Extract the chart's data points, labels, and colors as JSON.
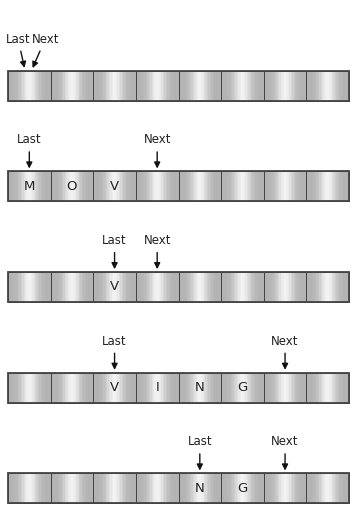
{
  "num_cells": 8,
  "rows": [
    {
      "contents": [
        "",
        "",
        "",
        "",
        "",
        "",
        "",
        ""
      ],
      "last_cell": 0,
      "next_cell": 0,
      "last_next_same": true
    },
    {
      "contents": [
        "M",
        "O",
        "V",
        "",
        "",
        "",
        "",
        ""
      ],
      "last_cell": 0,
      "next_cell": 3,
      "last_next_same": false
    },
    {
      "contents": [
        "",
        "",
        "V",
        "",
        "",
        "",
        "",
        ""
      ],
      "last_cell": 2,
      "next_cell": 3,
      "last_next_same": false
    },
    {
      "contents": [
        "",
        "",
        "V",
        "I",
        "N",
        "G",
        "",
        ""
      ],
      "last_cell": 2,
      "next_cell": 6,
      "last_next_same": false
    },
    {
      "contents": [
        "",
        "",
        "",
        "",
        "N",
        "G",
        "",
        ""
      ],
      "last_cell": 4,
      "next_cell": 6,
      "last_next_same": false
    }
  ],
  "num_rows": 5,
  "fig_width": 3.57,
  "fig_height": 5.32,
  "bg_color": "#ffffff",
  "cell_border_color": "#444444",
  "text_color": "#222222",
  "arrow_color": "#111111",
  "font_size_label": 8.5,
  "font_size_cell": 9.5
}
